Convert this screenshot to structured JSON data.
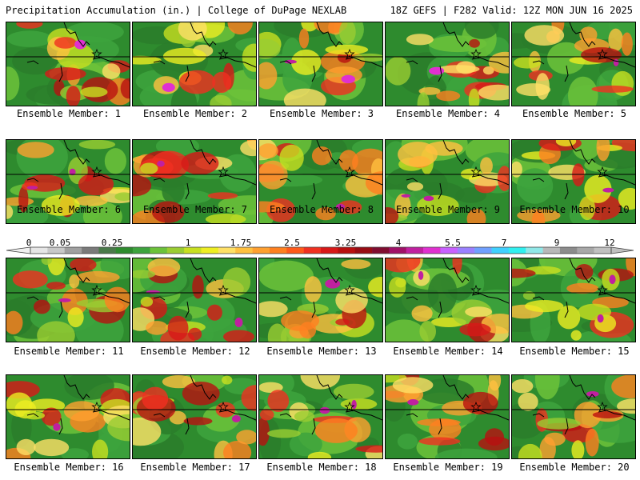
{
  "header": {
    "title": "Precipitation Accumulation (in.) | College of DuPage NEXLAB",
    "run_info": "18Z GEFS | F282 Valid: 12Z MON JUN 16 2025"
  },
  "member_label": "Ensemble Member:",
  "members": [
    {
      "id": 1,
      "label": "1"
    },
    {
      "id": 2,
      "label": "2"
    },
    {
      "id": 3,
      "label": "3"
    },
    {
      "id": 4,
      "label": "4"
    },
    {
      "id": 5,
      "label": "5"
    },
    {
      "id": 6,
      "label": "6"
    },
    {
      "id": 7,
      "label": "7"
    },
    {
      "id": 8,
      "label": "8"
    },
    {
      "id": 9,
      "label": "9"
    },
    {
      "id": 10,
      "label": "10"
    },
    {
      "id": 11,
      "label": "11"
    },
    {
      "id": 12,
      "label": "12"
    },
    {
      "id": 13,
      "label": "13"
    },
    {
      "id": 14,
      "label": "14"
    },
    {
      "id": 15,
      "label": "15"
    },
    {
      "id": 16,
      "label": "16"
    },
    {
      "id": 17,
      "label": "17"
    },
    {
      "id": 18,
      "label": "18"
    },
    {
      "id": 19,
      "label": "19"
    },
    {
      "id": 20,
      "label": "20"
    }
  ],
  "colorbar": {
    "tick_labels": [
      "0",
      "0.05",
      "0.25",
      "1",
      "1.75",
      "2.5",
      "3.25",
      "4",
      "5.5",
      "7",
      "9",
      "12"
    ],
    "colors": [
      "#e6e6e6",
      "#c8c8c8",
      "#a0a0a0",
      "#7a7a7a",
      "#4a7a4a",
      "#2e8b2e",
      "#3da33d",
      "#6cc23a",
      "#9acd32",
      "#c8e020",
      "#eeee22",
      "#ffe066",
      "#ffc040",
      "#ffa030",
      "#ff8020",
      "#ff5a1a",
      "#f03020",
      "#d81818",
      "#b81010",
      "#980c14",
      "#800c30",
      "#a01068",
      "#c020a0",
      "#e030d0",
      "#c860ff",
      "#9a80ff",
      "#70a0ff",
      "#40d0ff",
      "#30f0f0",
      "#90e8e8",
      "#b8b8b8",
      "#8c8c8c",
      "#a8a8a8",
      "#c0c0c0"
    ]
  }
}
